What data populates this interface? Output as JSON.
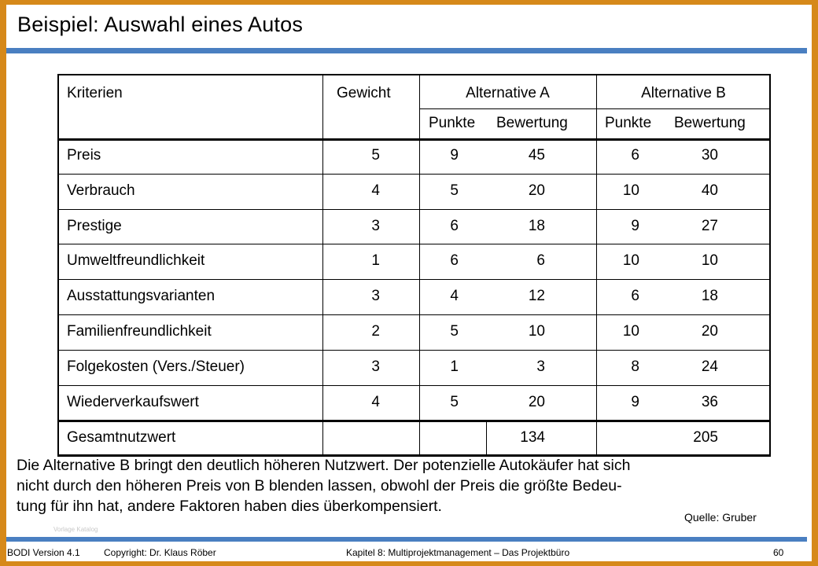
{
  "title": "Beispiel: Auswahl eines Autos",
  "table": {
    "headers": {
      "criteria": "Kriterien",
      "weight": "Gewicht",
      "alt_a": "Alternative A",
      "alt_b": "Alternative B",
      "points": "Punkte",
      "rating": "Bewertung"
    },
    "rows": [
      {
        "criterion": "Preis",
        "weight": "5",
        "a_points": "9",
        "a_rating": "45",
        "b_points": "6",
        "b_rating": "30"
      },
      {
        "criterion": "Verbrauch",
        "weight": "4",
        "a_points": "5",
        "a_rating": "20",
        "b_points": "10",
        "b_rating": "40"
      },
      {
        "criterion": "Prestige",
        "weight": "3",
        "a_points": "6",
        "a_rating": "18",
        "b_points": "9",
        "b_rating": "27"
      },
      {
        "criterion": "Umweltfreundlichkeit",
        "weight": "1",
        "a_points": "6",
        "a_rating": "6",
        "b_points": "10",
        "b_rating": "10"
      },
      {
        "criterion": "Ausstattungsvarianten",
        "weight": "3",
        "a_points": "4",
        "a_rating": "12",
        "b_points": "6",
        "b_rating": "18"
      },
      {
        "criterion": "Familienfreundlichkeit",
        "weight": "2",
        "a_points": "5",
        "a_rating": "10",
        "b_points": "10",
        "b_rating": "20"
      },
      {
        "criterion": "Folgekosten (Vers./Steuer)",
        "weight": "3",
        "a_points": "1",
        "a_rating": "3",
        "b_points": "8",
        "b_rating": "24"
      },
      {
        "criterion": "Wiederverkaufswert",
        "weight": "4",
        "a_points": "5",
        "a_rating": "20",
        "b_points": "9",
        "b_rating": "36"
      }
    ],
    "total": {
      "label": "Gesamtnutzwert",
      "a_total": "134",
      "b_total": "205"
    }
  },
  "summary_lines": [
    "Die Alternative B bringt den deutlich höheren Nutzwert. Der potenzielle Autokäufer hat sich",
    "nicht durch den höheren Preis von B blenden lassen, obwohl der Preis die größte Bedeu-",
    "tung für ihn hat, andere Faktoren haben dies überkompensiert."
  ],
  "source": "Quelle: Gruber",
  "watermark": "Vorlage Katalog",
  "footer": {
    "version": "BODI Version 4.1",
    "copyright": "Copyright: Dr. Klaus Röber",
    "chapter": "Kapitel 8: Multiprojektmanagement – Das Projektbüro",
    "page": "60"
  },
  "colors": {
    "frame": "#d6891a",
    "accent_rule": "#4a7fc1"
  }
}
